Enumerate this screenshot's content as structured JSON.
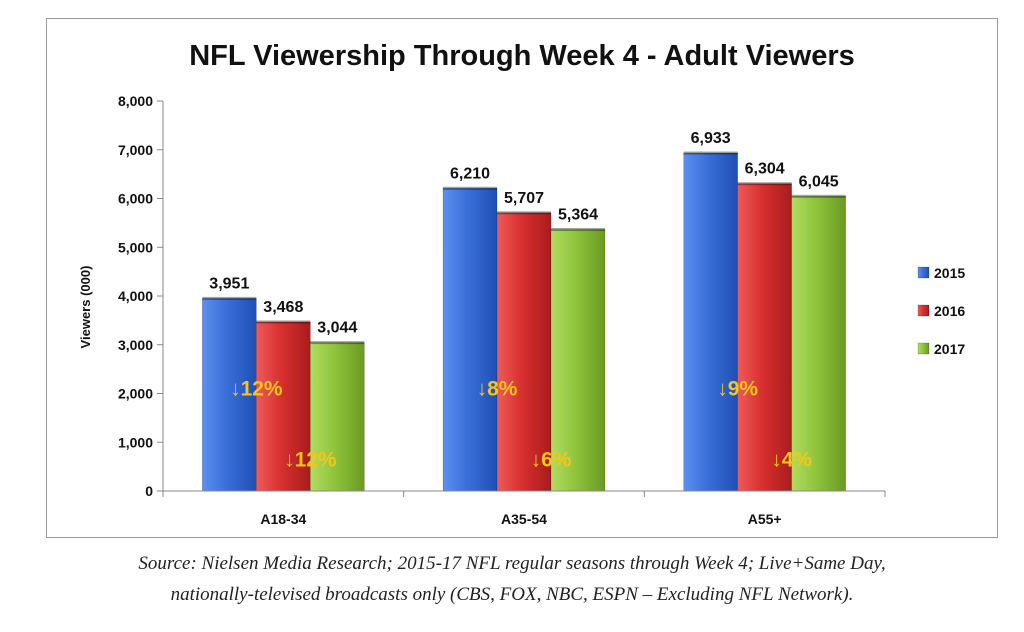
{
  "chart_data": {
    "type": "bar",
    "title": "NFL Viewership Through Week 4 - Adult Viewers",
    "ylabel": "Viewers (000)",
    "xlabel": "",
    "categories": [
      "A18-34",
      "A35-54",
      "A55+"
    ],
    "series": [
      {
        "name": "2015",
        "values": [
          3951,
          6210,
          6933
        ],
        "color": "#3a6fd8"
      },
      {
        "name": "2016",
        "values": [
          3468,
          5707,
          6304
        ],
        "color": "#d93030"
      },
      {
        "name": "2017",
        "values": [
          3044,
          5364,
          6045
        ],
        "color": "#8fc43c"
      }
    ],
    "value_labels": [
      [
        "3,951",
        "6,210",
        "6,933"
      ],
      [
        "3,468",
        "5,707",
        "6,304"
      ],
      [
        "3,044",
        "5,364",
        "6,045"
      ]
    ],
    "ylim": [
      0,
      8000
    ],
    "yticks": [
      0,
      1000,
      2000,
      3000,
      4000,
      5000,
      6000,
      7000,
      8000
    ],
    "ytick_labels": [
      "0",
      "1,000",
      "2,000",
      "3,000",
      "4,000",
      "5,000",
      "6,000",
      "7,000",
      "8,000"
    ],
    "change_annotations": [
      {
        "category": "A18-34",
        "series": "2016",
        "text": "↓12%",
        "value": -12
      },
      {
        "category": "A35-54",
        "series": "2016",
        "text": "↓8%",
        "value": -8
      },
      {
        "category": "A55+",
        "series": "2016",
        "text": "↓9%",
        "value": -9
      },
      {
        "category": "A18-34",
        "series": "2017",
        "text": "↓12%",
        "value": -12
      },
      {
        "category": "A35-54",
        "series": "2017",
        "text": "↓6%",
        "value": -6
      },
      {
        "category": "A55+",
        "series": "2017",
        "text": "↓4%",
        "value": -4
      }
    ],
    "annotation_color": "#f5c518",
    "legend_position": "right",
    "grid": false
  },
  "source": {
    "line1": "Source: Nielsen Media Research; 2015-17 NFL regular seasons through Week 4; Live+Same Day,",
    "line2": "nationally-televised broadcasts only (CBS, FOX, NBC, ESPN – Excluding NFL Network)."
  }
}
